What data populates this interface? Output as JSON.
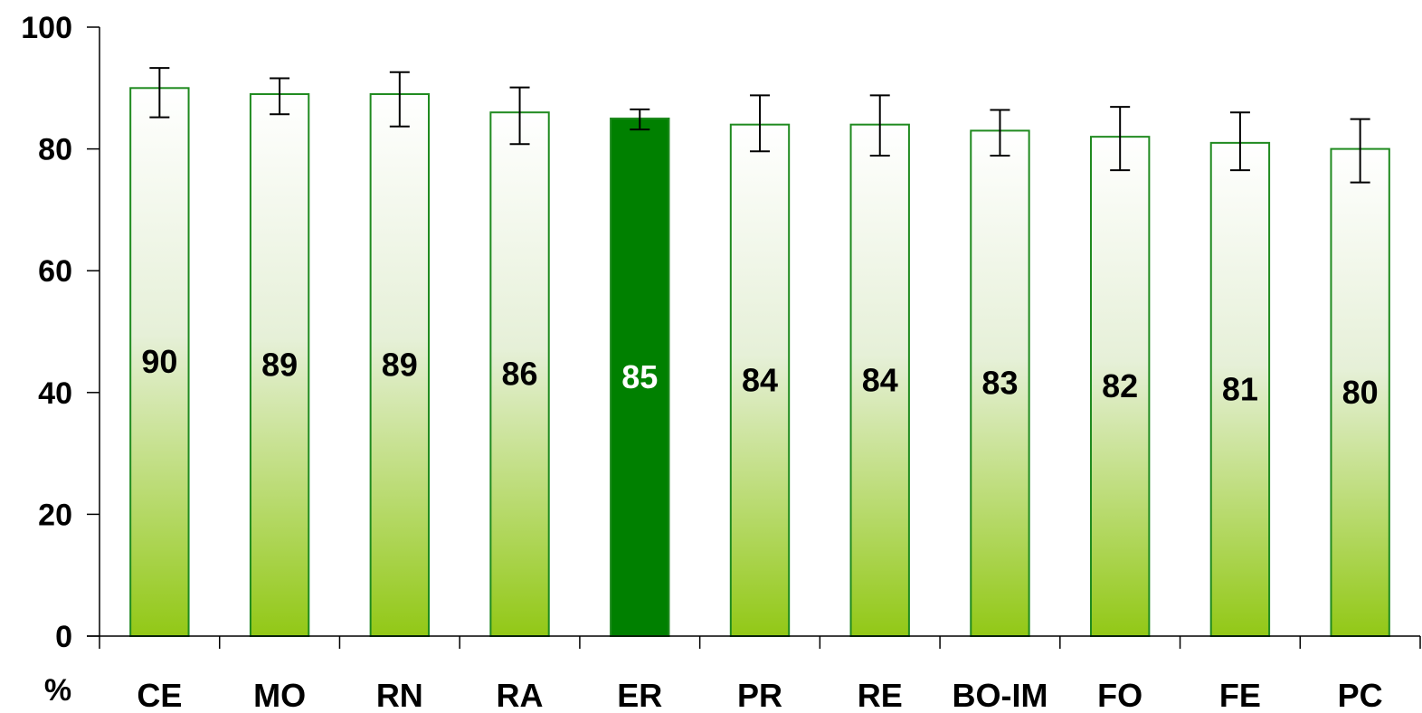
{
  "chart_data": {
    "type": "bar",
    "unit_label": "%",
    "categories": [
      "CE",
      "MO",
      "RN",
      "RA",
      "ER",
      "PR",
      "RE",
      "BO-IM",
      "FO",
      "FE",
      "PC"
    ],
    "values": [
      90,
      89,
      89,
      86,
      85,
      84,
      84,
      83,
      82,
      81,
      80
    ],
    "error_low": [
      85.2,
      85.7,
      83.7,
      80.8,
      83.2,
      79.6,
      78.9,
      78.9,
      76.5,
      76.5,
      74.5
    ],
    "error_high": [
      93.3,
      91.6,
      92.6,
      90.1,
      86.5,
      88.8,
      88.8,
      86.4,
      86.9,
      86.0,
      84.9
    ],
    "highlighted_category": "ER",
    "ylim": [
      0,
      100
    ],
    "yticks": [
      0,
      20,
      40,
      60,
      80,
      100
    ],
    "xlabel": "",
    "ylabel": "",
    "title": "",
    "grid": false,
    "legend": "none",
    "colors": {
      "bar_border": "#1f8a1f",
      "bar_gradient_top": "#ffffff",
      "bar_gradient_bottom": "#92c816",
      "highlight_fill": "#008000",
      "highlight_label": "#ffffff",
      "label": "#000000",
      "axis": "#000000"
    }
  }
}
